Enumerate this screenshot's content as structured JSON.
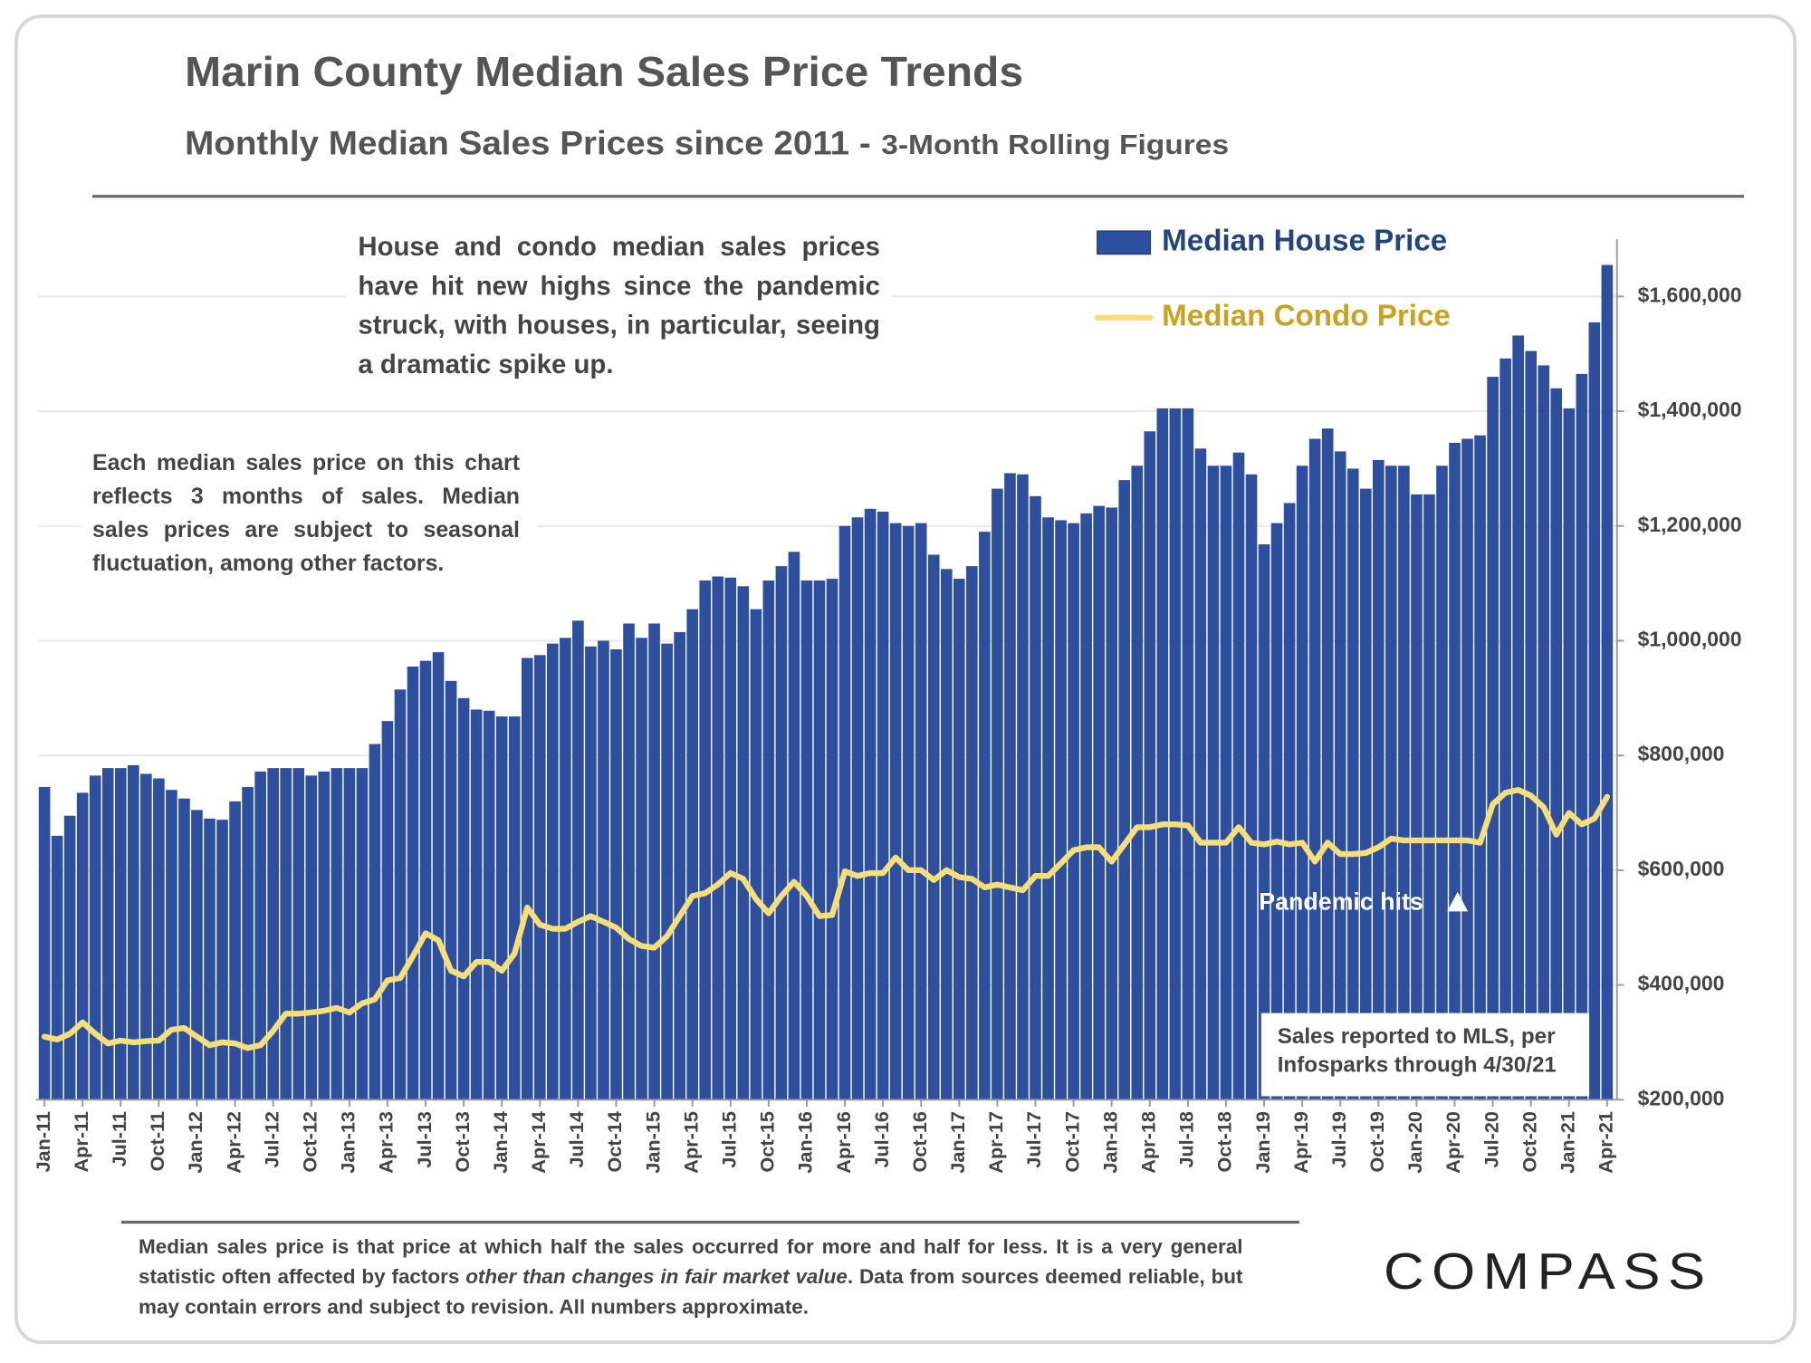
{
  "chart_data": {
    "type": "bar_line",
    "title": "Marin County Median Sales Price Trends",
    "subtitle": "Monthly Median Sales Prices since 2011 -",
    "subtitle_note": "3-Month Rolling Figures",
    "annotations": {
      "headline": "House and condo median sales prices have hit new highs since the pandemic struck, with houses, in particular, seeing a dramatic spike up.",
      "method": "Each median sales price on this chart reflects 3 months of sales. Median sales prices are subject to seasonal fluctuation, among other factors.",
      "pandemic": "Pandemic hits",
      "source": [
        "Sales reported to MLS, per",
        "Infosparks through 4/30/21"
      ]
    },
    "footnote": [
      "Median sales price is that price at which half the sales occurred for more and half for less. It is a very general statistic often affected by factors ",
      "other than changes in fair market value",
      ". Data from sources deemed reliable, but may contain errors and subject to revision. All numbers approximate."
    ],
    "brand": "COMPASS",
    "categories": [
      "Jan-11",
      null,
      null,
      "Apr-11",
      null,
      null,
      "Jul-11",
      null,
      null,
      "Oct-11",
      null,
      null,
      "Jan-12",
      null,
      null,
      "Apr-12",
      null,
      null,
      "Jul-12",
      null,
      null,
      "Oct-12",
      null,
      null,
      "Jan-13",
      null,
      null,
      "Apr-13",
      null,
      null,
      "Jul-13",
      null,
      null,
      "Oct-13",
      null,
      null,
      "Jan-14",
      null,
      null,
      "Apr-14",
      null,
      null,
      "Jul-14",
      null,
      null,
      "Oct-14",
      null,
      null,
      "Jan-15",
      null,
      null,
      "Apr-15",
      null,
      null,
      "Jul-15",
      null,
      null,
      "Oct-15",
      null,
      null,
      "Jan-16",
      null,
      null,
      "Apr-16",
      null,
      null,
      "Jul-16",
      null,
      null,
      "Oct-16",
      null,
      null,
      "Jan-17",
      null,
      null,
      "Apr-17",
      null,
      null,
      "Jul-17",
      null,
      null,
      "Oct-17",
      null,
      null,
      "Jan-18",
      null,
      null,
      "Apr-18",
      null,
      null,
      "Jul-18",
      null,
      null,
      "Oct-18",
      null,
      null,
      "Jan-19",
      null,
      null,
      "Apr-19",
      null,
      null,
      "Jul-19",
      null,
      null,
      "Oct-19",
      null,
      null,
      "Jan-20",
      null,
      null,
      "Apr-20",
      null,
      null,
      "Jul-20",
      null,
      null,
      "Oct-20",
      null,
      null,
      "Jan-21",
      null,
      null,
      "Apr-21"
    ],
    "series": [
      {
        "name": "Median House Price",
        "color": "#2e4f9e",
        "kind": "bar",
        "values": [
          745000,
          660000,
          695000,
          735000,
          765000,
          778000,
          778000,
          783000,
          768000,
          760000,
          740000,
          725000,
          705000,
          690000,
          688000,
          720000,
          745000,
          772000,
          778000,
          778000,
          778000,
          765000,
          772000,
          778000,
          778000,
          778000,
          820000,
          860000,
          915000,
          955000,
          965000,
          980000,
          930000,
          900000,
          880000,
          878000,
          868000,
          868000,
          970000,
          975000,
          995000,
          1005000,
          1035000,
          990000,
          1000000,
          985000,
          1030000,
          1005000,
          1030000,
          995000,
          1015000,
          1055000,
          1105000,
          1112000,
          1110000,
          1095000,
          1055000,
          1105000,
          1130000,
          1155000,
          1105000,
          1105000,
          1108000,
          1200000,
          1215000,
          1230000,
          1225000,
          1205000,
          1200000,
          1205000,
          1150000,
          1125000,
          1108000,
          1130000,
          1190000,
          1265000,
          1292000,
          1290000,
          1252000,
          1215000,
          1210000,
          1205000,
          1222000,
          1235000,
          1232000,
          1280000,
          1305000,
          1365000,
          1405000,
          1405000,
          1405000,
          1335000,
          1305000,
          1305000,
          1328000,
          1290000,
          1168000,
          1205000,
          1240000,
          1305000,
          1352000,
          1370000,
          1330000,
          1300000,
          1265000,
          1315000,
          1305000,
          1305000,
          1255000,
          1255000,
          1305000,
          1345000,
          1352000,
          1358000,
          1460000,
          1492000,
          1532000,
          1505000,
          1480000,
          1440000,
          1405000,
          1465000,
          1555000,
          1655000
        ]
      },
      {
        "name": "Median Condo Price",
        "color": "#f6df78",
        "kind": "line",
        "values": [
          310000,
          305000,
          315000,
          335000,
          315000,
          298000,
          303000,
          300000,
          302000,
          303000,
          322000,
          325000,
          310000,
          295000,
          300000,
          298000,
          290000,
          295000,
          320000,
          350000,
          350000,
          352000,
          355000,
          360000,
          352000,
          368000,
          375000,
          408000,
          412000,
          450000,
          490000,
          478000,
          425000,
          415000,
          440000,
          440000,
          425000,
          455000,
          535000,
          505000,
          498000,
          498000,
          510000,
          520000,
          510000,
          500000,
          480000,
          468000,
          465000,
          485000,
          520000,
          555000,
          560000,
          575000,
          595000,
          585000,
          550000,
          525000,
          555000,
          580000,
          555000,
          520000,
          522000,
          598000,
          590000,
          595000,
          595000,
          622000,
          600000,
          600000,
          583000,
          600000,
          588000,
          585000,
          570000,
          575000,
          570000,
          565000,
          590000,
          590000,
          612000,
          635000,
          640000,
          640000,
          615000,
          645000,
          675000,
          675000,
          680000,
          680000,
          678000,
          648000,
          648000,
          648000,
          675000,
          648000,
          645000,
          650000,
          645000,
          648000,
          615000,
          648000,
          628000,
          628000,
          630000,
          640000,
          655000,
          652000,
          652000,
          652000,
          652000,
          652000,
          652000,
          648000,
          715000,
          735000,
          740000,
          730000,
          710000,
          662000,
          700000,
          680000,
          690000,
          728000
        ]
      }
    ],
    "ylim": [
      200000,
      1700000
    ],
    "yticks": [
      {
        "value": 200000,
        "label": "$200,000"
      },
      {
        "value": 400000,
        "label": "$400,000"
      },
      {
        "value": 600000,
        "label": "$600,000"
      },
      {
        "value": 800000,
        "label": "$800,000"
      },
      {
        "value": 1000000,
        "label": "$1,000,000"
      },
      {
        "value": 1200000,
        "label": "$1,200,000"
      },
      {
        "value": 1400000,
        "label": "$1,400,000"
      },
      {
        "value": 1600000,
        "label": "$1,600,000"
      }
    ],
    "grid": true,
    "legend": "top-right"
  }
}
